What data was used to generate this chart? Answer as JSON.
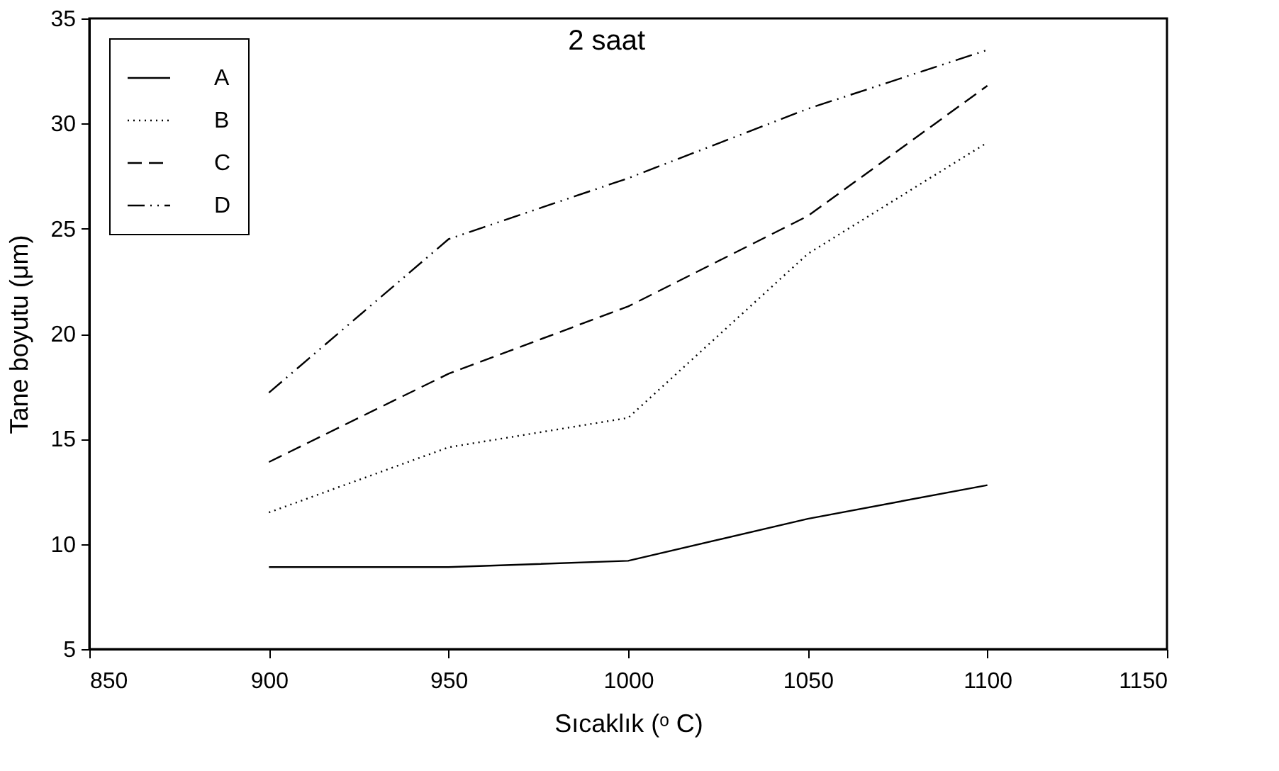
{
  "chart_data": {
    "type": "line",
    "title": "2 saat",
    "xlabel": "Sıcaklık (ᵒ C)",
    "ylabel": "Tane boyutu (μm)",
    "x": [
      900,
      950,
      1000,
      1050,
      1100
    ],
    "series": [
      {
        "name": "A",
        "color": "#000000",
        "line_style": "solid",
        "values": [
          8.9,
          8.9,
          9.2,
          11.2,
          12.8
        ]
      },
      {
        "name": "B",
        "color": "#000000",
        "line_style": "dotted",
        "values": [
          11.5,
          14.6,
          16.0,
          23.8,
          29.1
        ]
      },
      {
        "name": "C",
        "color": "#000000",
        "line_style": "dashed",
        "values": [
          13.9,
          18.1,
          21.3,
          25.6,
          31.8
        ]
      },
      {
        "name": "D",
        "color": "#000000",
        "line_style": "dashdotdot",
        "values": [
          17.2,
          24.5,
          27.4,
          30.7,
          33.5
        ]
      }
    ],
    "xlim": [
      850,
      1150
    ],
    "xticks": [
      850,
      900,
      950,
      1000,
      1050,
      1100,
      1150
    ],
    "ylim": [
      5,
      35
    ],
    "yticks": [
      5,
      10,
      15,
      20,
      25,
      30,
      35
    ],
    "grid": false,
    "legend": "top left",
    "marker": "none"
  }
}
